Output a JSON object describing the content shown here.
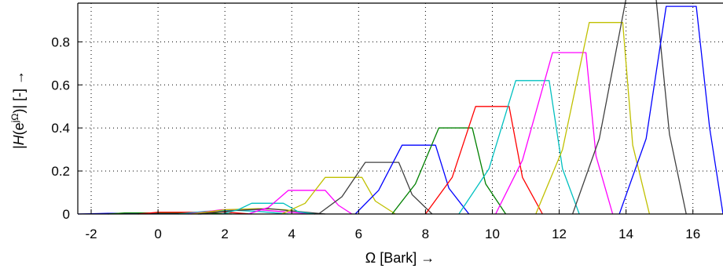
{
  "chart_data": {
    "type": "line",
    "xlabel": "Ω [Bark] →",
    "ylabel_parts": {
      "pre": "|",
      "H": "H",
      "open": "(e",
      "sup": "jΩ",
      "close": ")| [-] →"
    },
    "xlim": [
      -2.4,
      16.9
    ],
    "ylim": [
      0,
      0.98
    ],
    "xticks": [
      "-2",
      "0",
      "2",
      "4",
      "6",
      "8",
      "10",
      "12",
      "14",
      "16"
    ],
    "yticks": [
      "0",
      "0.2",
      "0.4",
      "0.6",
      "0.8"
    ],
    "xtick_values": [
      -2,
      0,
      2,
      4,
      6,
      8,
      10,
      12,
      14,
      16
    ],
    "ytick_values": [
      0,
      0.2,
      0.4,
      0.6,
      0.8
    ],
    "grid": true,
    "series": [
      {
        "color": "#0000ff",
        "points": [
          [
            -2.4,
            0.0
          ],
          [
            -1.5,
            0.003
          ],
          [
            -0.5,
            0.003
          ],
          [
            0.5,
            0.003
          ],
          [
            1.3,
            0.0
          ]
        ]
      },
      {
        "color": "#008000",
        "points": [
          [
            -1.5,
            0.0
          ],
          [
            -1.0,
            0.005
          ],
          [
            0.2,
            0.005
          ],
          [
            1.5,
            0.005
          ],
          [
            2.2,
            0.0
          ]
        ]
      },
      {
        "color": "#ff0000",
        "points": [
          [
            -0.6,
            0.0
          ],
          [
            0.0,
            0.008
          ],
          [
            1.1,
            0.008
          ],
          [
            1.9,
            0.01
          ],
          [
            2.8,
            0.0
          ]
        ]
      },
      {
        "color": "#00c0c0",
        "points": [
          [
            0.6,
            0.0
          ],
          [
            1.4,
            0.012
          ],
          [
            2.2,
            0.018
          ],
          [
            3.0,
            0.012
          ],
          [
            3.9,
            0.0
          ]
        ]
      },
      {
        "color": "#ff00ff",
        "points": [
          [
            0.9,
            0.0
          ],
          [
            1.9,
            0.02
          ],
          [
            3.0,
            0.02
          ],
          [
            3.8,
            0.01
          ],
          [
            4.7,
            0.0
          ]
        ]
      },
      {
        "color": "#c0c000",
        "points": [
          [
            1.0,
            0.0
          ],
          [
            2.0,
            0.02
          ],
          [
            3.0,
            0.025
          ],
          [
            3.8,
            0.02
          ],
          [
            4.7,
            0.0
          ]
        ]
      },
      {
        "color": "#404040",
        "points": [
          [
            1.2,
            0.0
          ],
          [
            2.2,
            0.015
          ],
          [
            3.3,
            0.025
          ],
          [
            4.3,
            0.01
          ],
          [
            5.0,
            0.0
          ]
        ]
      },
      {
        "color": "#00c0c0",
        "points": [
          [
            1.9,
            0.0
          ],
          [
            2.4,
            0.02
          ],
          [
            2.8,
            0.05
          ],
          [
            3.75,
            0.05
          ],
          [
            4.2,
            0.01
          ],
          [
            4.7,
            0.0
          ]
        ]
      },
      {
        "color": "#ff00ff",
        "points": [
          [
            2.7,
            0.0
          ],
          [
            3.3,
            0.03
          ],
          [
            3.9,
            0.11
          ],
          [
            5.0,
            0.11
          ],
          [
            5.4,
            0.04
          ],
          [
            5.8,
            0.0
          ]
        ]
      },
      {
        "color": "#c0c000",
        "points": [
          [
            3.7,
            0.0
          ],
          [
            4.4,
            0.05
          ],
          [
            5.0,
            0.17
          ],
          [
            6.1,
            0.17
          ],
          [
            6.5,
            0.06
          ],
          [
            7.1,
            0.0
          ]
        ]
      },
      {
        "color": "#404040",
        "points": [
          [
            4.8,
            0.0
          ],
          [
            5.5,
            0.08
          ],
          [
            6.2,
            0.24
          ],
          [
            7.2,
            0.24
          ],
          [
            7.6,
            0.09
          ],
          [
            8.2,
            0.0
          ]
        ]
      },
      {
        "color": "#0000ff",
        "points": [
          [
            5.9,
            0.0
          ],
          [
            6.6,
            0.11
          ],
          [
            7.3,
            0.32
          ],
          [
            8.3,
            0.32
          ],
          [
            8.7,
            0.12
          ],
          [
            9.3,
            0.0
          ]
        ]
      },
      {
        "color": "#008000",
        "points": [
          [
            7.0,
            0.0
          ],
          [
            7.7,
            0.14
          ],
          [
            8.4,
            0.4
          ],
          [
            9.4,
            0.4
          ],
          [
            9.8,
            0.14
          ],
          [
            10.4,
            0.0
          ]
        ]
      },
      {
        "color": "#ff0000",
        "points": [
          [
            8.0,
            0.0
          ],
          [
            8.8,
            0.17
          ],
          [
            9.5,
            0.5
          ],
          [
            10.5,
            0.5
          ],
          [
            10.9,
            0.17
          ],
          [
            11.5,
            0.0
          ]
        ]
      },
      {
        "color": "#00c0c0",
        "points": [
          [
            9.0,
            0.0
          ],
          [
            9.9,
            0.21
          ],
          [
            10.7,
            0.62
          ],
          [
            11.7,
            0.62
          ],
          [
            12.1,
            0.21
          ],
          [
            12.6,
            0.0
          ]
        ]
      },
      {
        "color": "#ff00ff",
        "points": [
          [
            10.1,
            0.0
          ],
          [
            10.9,
            0.25
          ],
          [
            11.8,
            0.75
          ],
          [
            12.8,
            0.75
          ],
          [
            13.1,
            0.27
          ],
          [
            13.6,
            0.0
          ]
        ]
      },
      {
        "color": "#c0c000",
        "points": [
          [
            11.3,
            0.0
          ],
          [
            12.1,
            0.3
          ],
          [
            12.9,
            0.89
          ],
          [
            13.9,
            0.89
          ],
          [
            14.2,
            0.32
          ],
          [
            14.7,
            0.0
          ]
        ]
      },
      {
        "color": "#404040",
        "points": [
          [
            12.4,
            0.0
          ],
          [
            13.2,
            0.35
          ],
          [
            14.0,
            1.0
          ],
          [
            14.9,
            1.0
          ],
          [
            15.3,
            0.37
          ],
          [
            15.8,
            0.0
          ]
        ]
      },
      {
        "color": "#0000ff",
        "points": [
          [
            13.8,
            0.0
          ],
          [
            14.6,
            0.35
          ],
          [
            15.2,
            0.965
          ],
          [
            16.1,
            0.965
          ],
          [
            16.5,
            0.4
          ],
          [
            16.9,
            0.0
          ]
        ]
      }
    ]
  }
}
